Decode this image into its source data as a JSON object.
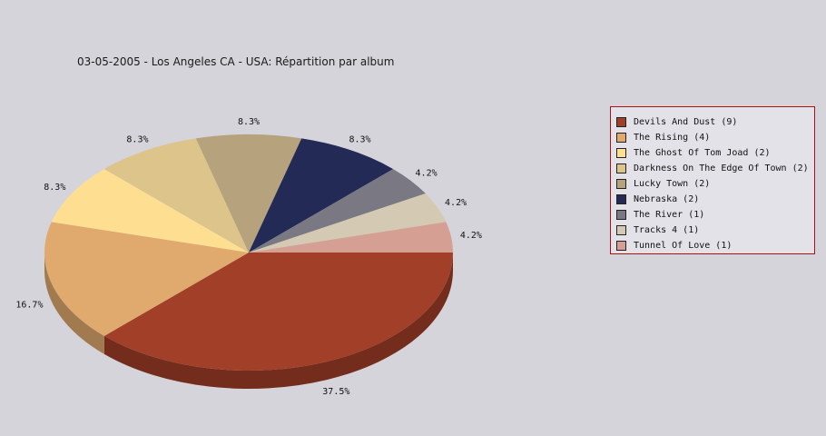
{
  "chart_data": {
    "type": "pie",
    "title": "03-05-2005 - Los Angeles CA - USA:  Répartition par album",
    "slices": [
      {
        "label": "Devils And Dust",
        "count": 9,
        "value": 37.5,
        "percent_label": "37.5%",
        "legend_label": "Devils And Dust (9)",
        "color": "#a13f28"
      },
      {
        "label": "The Rising",
        "count": 4,
        "value": 16.7,
        "percent_label": "16.7%",
        "legend_label": "The Rising (4)",
        "color": "#e0aa6e"
      },
      {
        "label": "The Ghost Of Tom Joad",
        "count": 2,
        "value": 8.3,
        "percent_label": "8.3%",
        "legend_label": "The Ghost Of Tom Joad (2)",
        "color": "#fedf91"
      },
      {
        "label": "Darkness On The Edge Of Town",
        "count": 2,
        "value": 8.3,
        "percent_label": "8.3%",
        "legend_label": "Darkness On The Edge Of Town (2)",
        "color": "#dcc48a"
      },
      {
        "label": "Lucky Town",
        "count": 2,
        "value": 8.3,
        "percent_label": "8.3%",
        "legend_label": "Lucky Town (2)",
        "color": "#b6a27c"
      },
      {
        "label": "Nebraska",
        "count": 2,
        "value": 8.3,
        "percent_label": "8.3%",
        "legend_label": "Nebraska (2)",
        "color": "#222a55"
      },
      {
        "label": "The River",
        "count": 1,
        "value": 4.2,
        "percent_label": "4.2%",
        "legend_label": "The River (1)",
        "color": "#7a7882"
      },
      {
        "label": "Tracks 4",
        "count": 1,
        "value": 4.2,
        "percent_label": "4.2%",
        "legend_label": "Tracks 4 (1)",
        "color": "#d4c9b3"
      },
      {
        "label": "Tunnel Of Love",
        "count": 1,
        "value": 4.2,
        "percent_label": "4.2%",
        "legend_label": "Tunnel Of Love (1)",
        "color": "#d59f94"
      }
    ],
    "legend_position": "right",
    "style": "3d-pie"
  }
}
